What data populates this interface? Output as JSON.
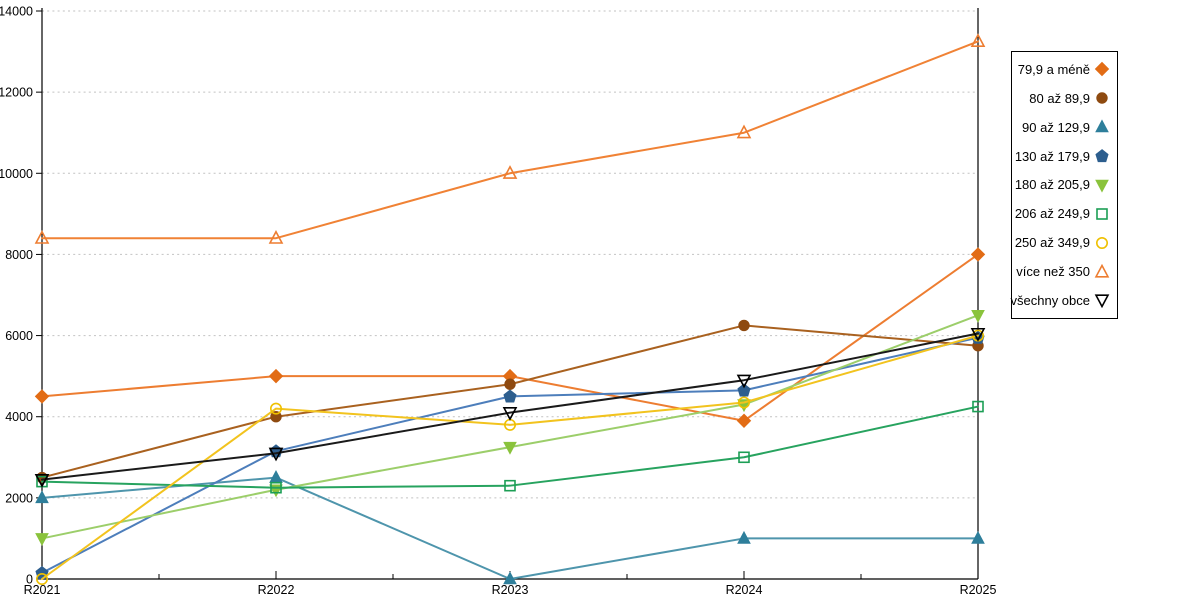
{
  "chart_data": {
    "type": "line",
    "title": "",
    "xlabel": "",
    "ylabel": "",
    "categories": [
      "R2021",
      "R2022",
      "R2023",
      "R2024",
      "R2025"
    ],
    "y_ticks": [
      0,
      2000,
      4000,
      6000,
      8000,
      10000,
      12000,
      14000
    ],
    "ylim": [
      0,
      14000
    ],
    "grid": "horizontal-dashed",
    "legend_position": "right",
    "grid_color": "#c2c2c2",
    "axis_color": "#000000",
    "series": [
      {
        "name": "79,9 a méně",
        "marker": "diamond",
        "fill": "filled",
        "line_color": "#ED7D31",
        "marker_color": "#E26C15",
        "values": [
          4500,
          5000,
          5000,
          3900,
          8000
        ]
      },
      {
        "name": "80 až 89,9",
        "marker": "circle",
        "fill": "filled",
        "line_color": "#A9611F",
        "marker_color": "#8E4A10",
        "values": [
          2500,
          4000,
          4800,
          6250,
          5750
        ]
      },
      {
        "name": "90 až 129,9",
        "marker": "triangle-up",
        "fill": "filled",
        "line_color": "#4E95AC",
        "marker_color": "#2E7F9B",
        "values": [
          2000,
          2500,
          0,
          1000,
          1000
        ]
      },
      {
        "name": "130 až 179,9",
        "marker": "pentagon",
        "fill": "filled",
        "line_color": "#4D7EBB",
        "marker_color": "#2D5E8E",
        "values": [
          150,
          3150,
          4500,
          4650,
          5950
        ]
      },
      {
        "name": "180 až 205,9",
        "marker": "triangle-down",
        "fill": "filled",
        "line_color": "#9CCE6A",
        "marker_color": "#8AC33C",
        "values": [
          1000,
          2200,
          3250,
          4300,
          6500
        ]
      },
      {
        "name": "206 až 249,9",
        "marker": "square",
        "fill": "open",
        "line_color": "#27A35F",
        "marker_color": "#1C9E55",
        "values": [
          2400,
          2250,
          2300,
          3000,
          4250
        ]
      },
      {
        "name": "250 až 349,9",
        "marker": "circle",
        "fill": "open",
        "line_color": "#F2C31E",
        "marker_color": "#EFC000",
        "values": [
          0,
          4200,
          3800,
          4350,
          6000
        ]
      },
      {
        "name": "více než 350",
        "marker": "triangle-up",
        "fill": "open",
        "line_color": "#F08235",
        "marker_color": "#ED7D31",
        "values": [
          8400,
          8400,
          10000,
          11000,
          13250
        ]
      },
      {
        "name": "všechny obce",
        "marker": "triangle-down",
        "fill": "open",
        "line_color": "#1A1A1A",
        "marker_color": "#000000",
        "values": [
          2450,
          3100,
          4100,
          4900,
          6050
        ]
      }
    ]
  }
}
